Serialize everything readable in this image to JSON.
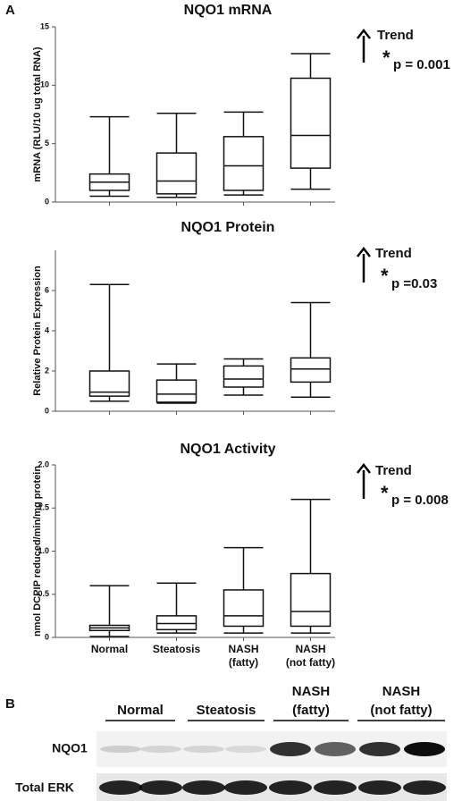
{
  "panel_labels": [
    "A",
    "B"
  ],
  "chart_data": [
    {
      "type": "box",
      "title": "NQO1 mRNA",
      "ylabel": "mRNA (RLU/10 ug total RNA)",
      "ylim": [
        0,
        15
      ],
      "yticks": [
        0,
        5,
        10,
        15
      ],
      "boxes": [
        {
          "min": 0.5,
          "q1": 1.0,
          "median": 1.7,
          "q3": 2.4,
          "max": 7.3
        },
        {
          "min": 0.4,
          "q1": 0.7,
          "median": 1.8,
          "q3": 4.2,
          "max": 7.6
        },
        {
          "min": 0.6,
          "q1": 1.0,
          "median": 3.1,
          "q3": 5.6,
          "max": 7.7
        },
        {
          "min": 1.1,
          "q1": 2.9,
          "median": 5.7,
          "q3": 10.6,
          "max": 12.7
        }
      ],
      "annotations": [
        "Trend",
        "*",
        "p = 0.001"
      ]
    },
    {
      "type": "box",
      "title": "NQO1 Protein",
      "ylabel": "Relative Protein Expression",
      "ylim": [
        0,
        8
      ],
      "yticks": [
        0,
        2,
        4,
        6
      ],
      "boxes": [
        {
          "min": 0.5,
          "q1": 0.75,
          "median": 0.95,
          "q3": 2.0,
          "max": 6.3
        },
        {
          "min": 0.4,
          "q1": 0.45,
          "median": 0.85,
          "q3": 1.55,
          "max": 2.35
        },
        {
          "min": 0.8,
          "q1": 1.2,
          "median": 1.6,
          "q3": 2.25,
          "max": 2.6
        },
        {
          "min": 0.7,
          "q1": 1.45,
          "median": 2.1,
          "q3": 2.65,
          "max": 5.4
        }
      ],
      "annotations": [
        "Trend",
        "*",
        "p =0.03"
      ]
    },
    {
      "type": "box",
      "title": "NQO1 Activity",
      "ylabel": "nmol DCPIP reduced/min/mg protein",
      "ylim": [
        0,
        2
      ],
      "yticks": [
        0,
        0.5,
        {
          "value": 1,
          "label": "1.0"
        },
        1.5,
        {
          "value": 2,
          "label": "2.0"
        }
      ],
      "categories": [
        [
          "Normal"
        ],
        [
          "Steatosis"
        ],
        [
          "NASH",
          "(fatty)"
        ],
        [
          "NASH",
          "(not fatty)"
        ]
      ],
      "boxes": [
        {
          "min": 0.01,
          "q1": 0.08,
          "median": 0.11,
          "q3": 0.14,
          "max": 0.6
        },
        {
          "min": 0.05,
          "q1": 0.09,
          "median": 0.16,
          "q3": 0.25,
          "max": 0.63
        },
        {
          "min": 0.05,
          "q1": 0.13,
          "median": 0.25,
          "q3": 0.55,
          "max": 1.04
        },
        {
          "min": 0.05,
          "q1": 0.13,
          "median": 0.3,
          "q3": 0.74,
          "max": 1.6
        }
      ],
      "annotations": [
        "Trend",
        "*",
        "p = 0.008"
      ]
    }
  ],
  "blot": {
    "groups": [
      [
        "Normal"
      ],
      [
        "Steatosis"
      ],
      [
        "NASH",
        "(fatty)"
      ],
      [
        "NASH",
        "(not fatty)"
      ]
    ],
    "rows": [
      "NQO1",
      "Total ERK"
    ]
  }
}
